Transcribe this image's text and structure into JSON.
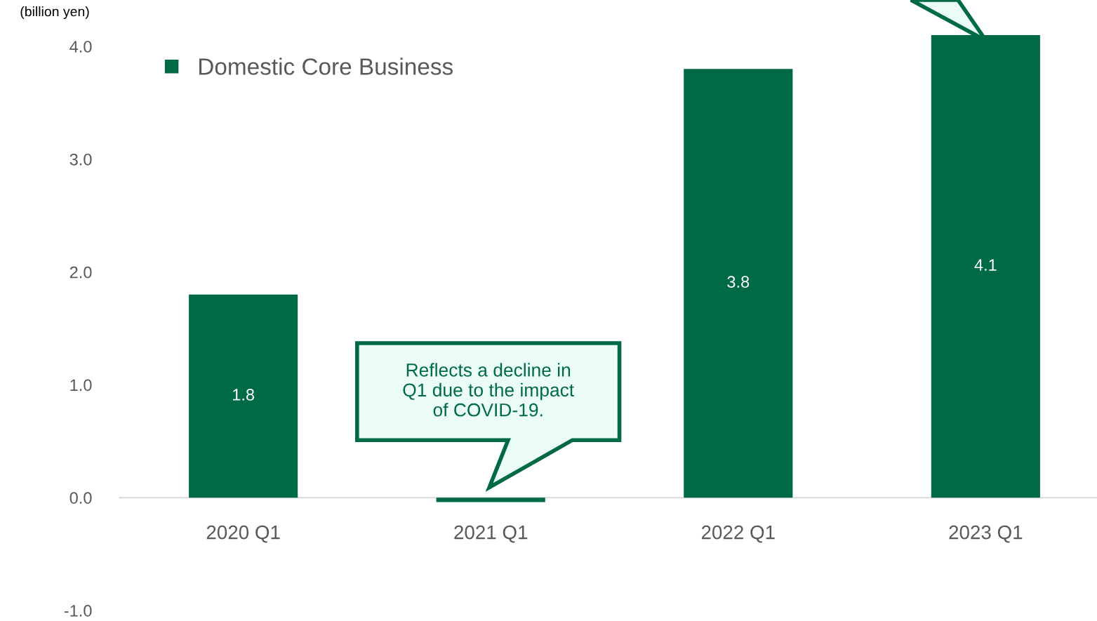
{
  "chart_data": {
    "type": "bar",
    "ylabel": "(billion yen)",
    "categories": [
      "2020 Q1",
      "2021 Q1",
      "2022 Q1",
      "2023 Q1"
    ],
    "series": [
      {
        "name": "Domestic Core Business",
        "color": "#006a47",
        "values": [
          1.8,
          -0.04,
          3.8,
          4.1
        ],
        "value_labels": [
          "1.8",
          null,
          "3.8",
          "4.1"
        ]
      }
    ],
    "ylim": [
      -1.0,
      4.1
    ],
    "yticks": [
      {
        "value": -1.0,
        "label": "-1.0"
      },
      {
        "value": 0,
        "label": "0.0"
      },
      {
        "value": 1.0,
        "label": "1.0"
      },
      {
        "value": 2.0,
        "label": "2.0"
      },
      {
        "value": 3.0,
        "label": "3.0"
      },
      {
        "value": 4.0,
        "label": "4.0"
      }
    ],
    "grid": false,
    "legend": "top left",
    "annotations": [
      "Reflects a decline in\nQ1 due to the impact\nof COVID-19."
    ]
  }
}
